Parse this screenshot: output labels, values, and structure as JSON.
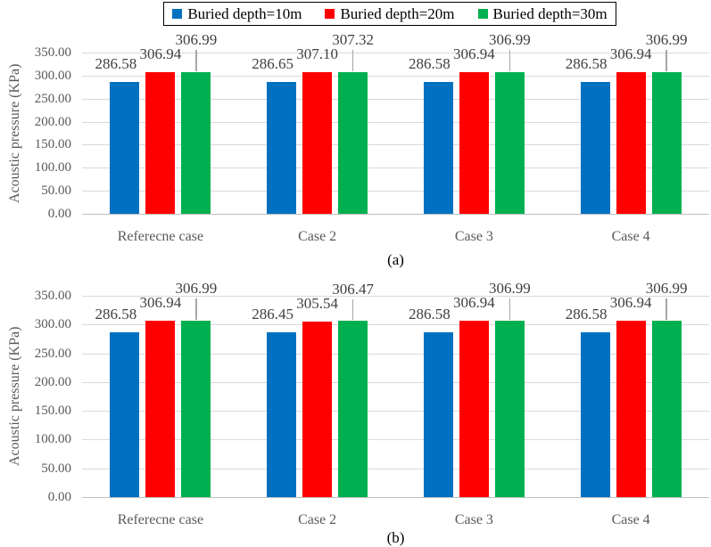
{
  "colors": {
    "series_blue": "#0070C0",
    "series_red": "#FF0000",
    "series_green": "#00B050",
    "gridline": "#D9D9D9",
    "axis_line": "#BFBFBF",
    "leader_line": "#A6A6A6",
    "tick_text": "#595959",
    "label_text": "#404040",
    "legend_border": "#000000"
  },
  "legend": {
    "position": "top",
    "items": [
      {
        "label": "Buried depth=10m",
        "color": "#0070C0"
      },
      {
        "label": "Buried depth=20m",
        "color": "#FF0000"
      },
      {
        "label": "Buried depth=30m",
        "color": "#00B050"
      }
    ]
  },
  "chart_data": [
    {
      "type": "bar",
      "panel_label": "(a)",
      "ylabel": "Acoustic pressure (KPa)",
      "ylim": [
        0,
        350
      ],
      "ytick_step": 50,
      "ytick_labels": [
        "0.00",
        "50.00",
        "100.00",
        "150.00",
        "200.00",
        "250.00",
        "300.00",
        "350.00"
      ],
      "grid": true,
      "legend_position": "top-shared",
      "categories": [
        "Referecne case",
        "Case 2",
        "Case 3",
        "Case 4"
      ],
      "series": [
        {
          "name": "Buried depth=10m",
          "color": "#0070C0",
          "values": [
            286.58,
            286.65,
            286.58,
            286.58
          ]
        },
        {
          "name": "Buried depth=20m",
          "color": "#FF0000",
          "values": [
            306.94,
            307.1,
            306.94,
            306.94
          ]
        },
        {
          "name": "Buried depth=30m",
          "color": "#00B050",
          "values": [
            306.99,
            307.32,
            306.99,
            306.99
          ]
        }
      ]
    },
    {
      "type": "bar",
      "panel_label": "(b)",
      "ylabel": "Acoustic pressure (KPa)",
      "ylim": [
        0,
        350
      ],
      "ytick_step": 50,
      "ytick_labels": [
        "0.00",
        "50.00",
        "100.00",
        "150.00",
        "200.00",
        "250.00",
        "300.00",
        "350.00"
      ],
      "grid": true,
      "legend_position": "top-shared",
      "categories": [
        "Referecne case",
        "Case 2",
        "Case 3",
        "Case 4"
      ],
      "series": [
        {
          "name": "Buried depth=10m",
          "color": "#0070C0",
          "values": [
            286.58,
            286.45,
            286.58,
            286.58
          ]
        },
        {
          "name": "Buried depth=20m",
          "color": "#FF0000",
          "values": [
            306.94,
            305.54,
            306.94,
            306.94
          ]
        },
        {
          "name": "Buried depth=30m",
          "color": "#00B050",
          "values": [
            306.99,
            306.47,
            306.99,
            306.99
          ]
        }
      ]
    }
  ]
}
